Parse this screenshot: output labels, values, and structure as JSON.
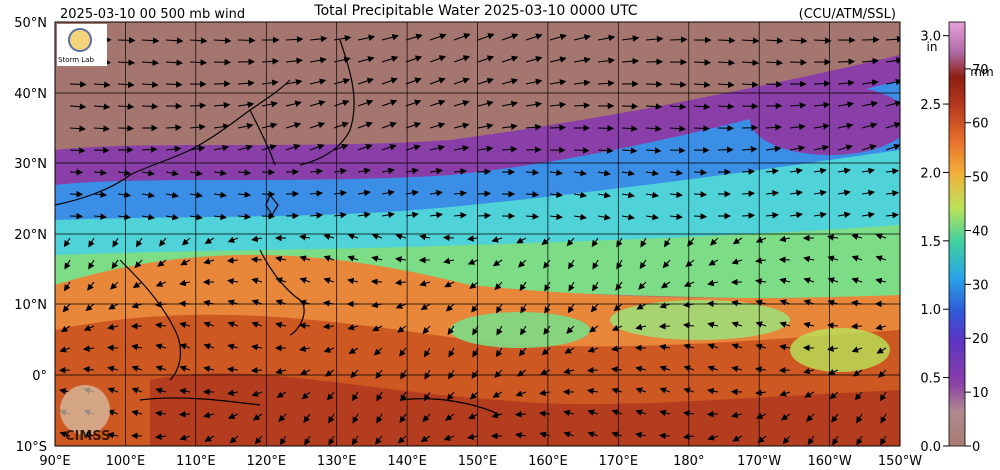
{
  "header": {
    "left_label": "2025-03-10 00 500 mb wind",
    "title": "Total Precipitable Water  2025-03-10 0000 UTC",
    "credit": "(CCU/ATM/SSL)"
  },
  "map": {
    "lat_labels": [
      "50°N",
      "40°N",
      "30°N",
      "20°N",
      "10°N",
      "0°",
      "10°S"
    ],
    "lon_labels": [
      "90°E",
      "100°E",
      "110°E",
      "120°E",
      "130°E",
      "140°E",
      "150°E",
      "160°E",
      "170°E",
      "180°",
      "170°W",
      "160°W",
      "150°W"
    ],
    "watermark": "CIMSS",
    "logo_text": "Storm Lab"
  },
  "colorbar": {
    "mm_unit": "mm",
    "in_unit": "in",
    "mm_ticks": [
      "0",
      "10",
      "20",
      "30",
      "40",
      "50",
      "60",
      "70"
    ],
    "in_ticks": [
      "0.0",
      "0.5",
      "1.0",
      "1.5",
      "2.0",
      "2.5",
      "3.0"
    ],
    "colors": [
      "#a87b72",
      "#b79092",
      "#8a3ea8",
      "#7a2db5",
      "#2e5bd8",
      "#2aa6e6",
      "#3ed0a0",
      "#b8e35a",
      "#f2b23a",
      "#e8702a",
      "#b83a1e",
      "#8c1f14",
      "#b06aa8",
      "#e6a0d8"
    ]
  },
  "colors": {
    "land_dry": "#a5766f",
    "purple": "#8a3ea8",
    "blue": "#3a8ee6",
    "cyan": "#4fd3d8",
    "green": "#7ddc86",
    "orange": "#e8863a",
    "deep_orange": "#c8501f",
    "red": "#a8321c"
  }
}
